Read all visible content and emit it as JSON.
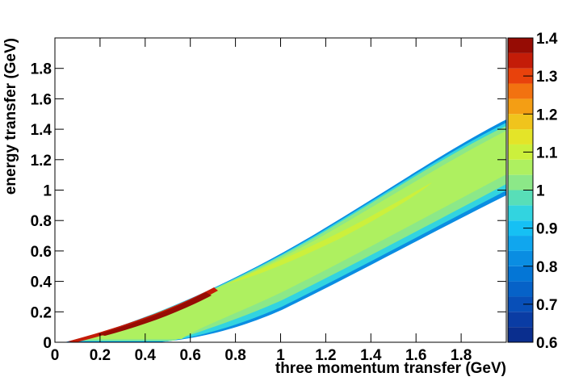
{
  "chart_data": {
    "type": "contour",
    "x_label": "three momentum transfer (GeV)",
    "y_label": "energy transfer (GeV)",
    "xlim": [
      0,
      2
    ],
    "ylim": [
      0,
      2
    ],
    "xticks": [
      0,
      0.2,
      0.4,
      0.6,
      0.8,
      1,
      1.2,
      1.4,
      1.6,
      1.8
    ],
    "yticks": [
      0,
      0.2,
      0.4,
      0.6,
      0.8,
      1,
      1.2,
      1.4,
      1.6,
      1.8
    ],
    "colorbar": {
      "zlim": [
        0.6,
        1.4
      ],
      "zticks": [
        0.6,
        0.7,
        0.8,
        0.9,
        1,
        1.1,
        1.2,
        1.3,
        1.4
      ],
      "levels": [
        0.6,
        0.64,
        0.68,
        0.72,
        0.76,
        0.8,
        0.84,
        0.88,
        0.92,
        0.96,
        1,
        1.04,
        1.08,
        1.12,
        1.16,
        1.2,
        1.24,
        1.28,
        1.32,
        1.36,
        1.4
      ],
      "colors": [
        "#0a2e8e",
        "#0a3ca4",
        "#084fb8",
        "#0662c8",
        "#0476d6",
        "#0a8de2",
        "#10a6ee",
        "#16c0f4",
        "#32d4e0",
        "#58deb8",
        "#8ce888",
        "#aef060",
        "#ccf03c",
        "#e4e428",
        "#f0c41c",
        "#f49e14",
        "#f27210",
        "#e8420c",
        "#c41c08",
        "#960c04"
      ]
    }
  }
}
